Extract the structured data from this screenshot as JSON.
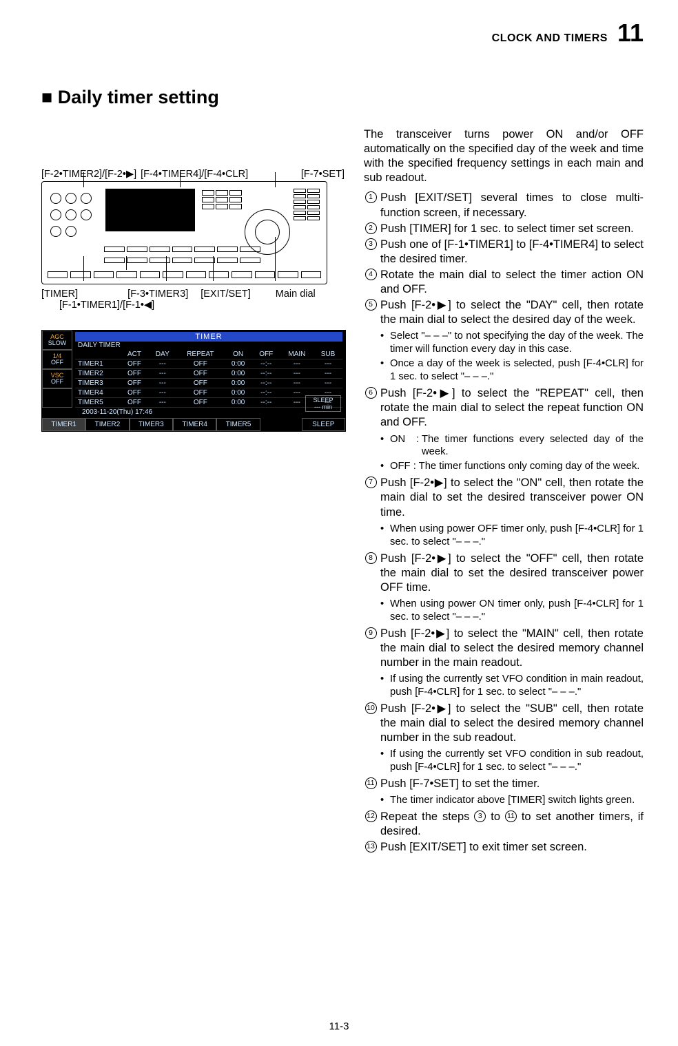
{
  "meta": {
    "header_label": "CLOCK AND TIMERS",
    "chapter_number": "11",
    "page_number": "11-3"
  },
  "section_title": "■ Daily timer setting",
  "diagram_labels": {
    "top": {
      "a": "[F-2•TIMER2]/[F-2•▶]",
      "b": "[F-4•TIMER4]/[F-4•CLR]",
      "c": "[F-7•SET]"
    },
    "bottom": {
      "a": "[TIMER]",
      "b": "[F-1•TIMER1]/[F-1•◀]",
      "c": "[F-3•TIMER3]",
      "d": "[EXIT/SET]",
      "e": "Main dial"
    }
  },
  "timer_screen": {
    "title_bar": "TIMER",
    "side_labels": {
      "agc_top": "AGC",
      "agc_bot": "SLOW",
      "q_top": "1/4",
      "q_bot": "OFF",
      "vsc_top": "VSC",
      "vsc_bot": "OFF"
    },
    "panel_title": "DAILY  TIMER",
    "columns": [
      "",
      "ACT",
      "DAY",
      "REPEAT",
      "ON",
      "OFF",
      "MAIN",
      "SUB"
    ],
    "rows": [
      [
        "TIMER1",
        "OFF",
        "---",
        "OFF",
        "0:00",
        "--:--",
        "---",
        "---"
      ],
      [
        "TIMER2",
        "OFF",
        "---",
        "OFF",
        "0:00",
        "--:--",
        "---",
        "---"
      ],
      [
        "TIMER3",
        "OFF",
        "---",
        "OFF",
        "0:00",
        "--:--",
        "---",
        "---"
      ],
      [
        "TIMER4",
        "OFF",
        "---",
        "OFF",
        "0:00",
        "--:--",
        "---",
        "---"
      ],
      [
        "TIMER5",
        "OFF",
        "---",
        "OFF",
        "0:00",
        "--:--",
        "---",
        "---"
      ]
    ],
    "date_line": "2003-11-20(Thu)  17:46",
    "sleep_box_top": "SLEEP",
    "sleep_box_bot": "--- min",
    "f_keys": [
      "TIMER1",
      "TIMER2",
      "TIMER3",
      "TIMER4",
      "TIMER5",
      "",
      "SLEEP"
    ],
    "colors": {
      "titlebar_bg": "#2548c8",
      "text": "#cfe6ff",
      "accent": "#ffb030",
      "page_bg": "#ffffff"
    }
  },
  "body": {
    "intro": "The transceiver turns power ON and/or OFF automatically on the specified day of the week and time with the specified frequency settings in each main and sub readout.",
    "steps": {
      "s1": "Push [EXIT/SET] several times to close multi-function screen, if necessary.",
      "s2": "Push [TIMER] for 1 sec. to select timer set screen.",
      "s3": "Push one of [F-1•TIMER1] to [F-4•TIMER4] to select the desired timer.",
      "s4": "Rotate the main dial to select the timer action ON and OFF.",
      "s5": "Push [F-2•▶] to select the \"DAY\" cell, then rotate the main dial to select the desired day of the week.",
      "s5_sub1": "Select \"– – –\" to not specifying the day of the week. The timer will function every day in this case.",
      "s5_sub2": "Once a day of the week is selected, push [F-4•CLR] for 1 sec. to select \"– – –.\"",
      "s6": "Push [F-2•▶] to select the \"REPEAT\" cell, then rotate the main dial to select the repeat function ON and OFF.",
      "s6_on_l": "ON",
      "s6_on_r": "The timer functions every selected day of the week.",
      "s6_off": "OFF : The timer functions only coming day of the week.",
      "s7": "Push [F-2•▶] to select the \"ON\" cell, then rotate the main dial to set the desired transceiver power ON time.",
      "s7_sub": "When using power OFF timer only, push [F-4•CLR] for 1 sec. to select \"– – –.\"",
      "s8": "Push [F-2•▶] to select the \"OFF\" cell, then rotate the main dial to set the desired transceiver power OFF time.",
      "s8_sub": "When using power ON timer only, push [F-4•CLR] for 1 sec. to select \"– – –.\"",
      "s9": "Push [F-2•▶] to select the \"MAIN\" cell, then rotate the main dial to select the desired memory channel number in the main readout.",
      "s9_sub": "If using the currently set VFO condition in main readout, push [F-4•CLR] for 1 sec. to select \"– – –.\"",
      "s10": "Push [F-2•▶] to select the \"SUB\" cell, then rotate the main dial to select the desired memory channel number in the sub readout.",
      "s10_sub": "If using the currently set VFO condition in sub readout, push [F-4•CLR] for 1 sec. to select \"– – –.\"",
      "s11": "Push [F-7•SET] to set the timer.",
      "s11_sub": "The timer indicator above [TIMER] switch lights green.",
      "s12_a": "Repeat the steps ",
      "s12_b": " to ",
      "s12_c": " to set another timers, if desired.",
      "s13": "Push [EXIT/SET] to exit timer set screen."
    }
  }
}
